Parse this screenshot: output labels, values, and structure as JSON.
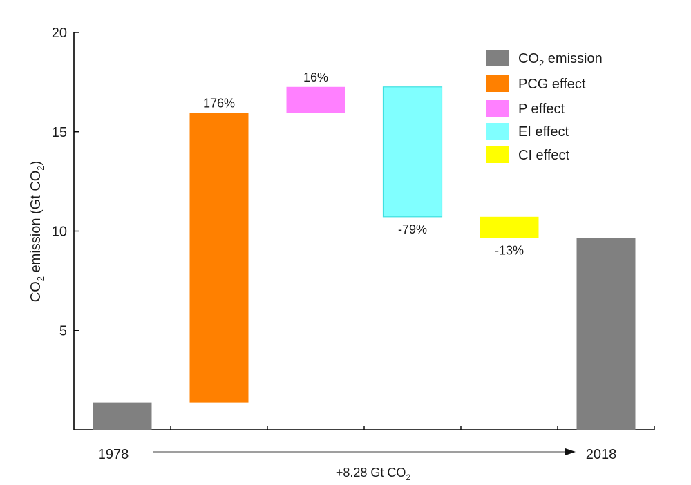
{
  "chart_data": {
    "type": "bar",
    "subtype": "waterfall",
    "ylabel": "CO₂ emission (Gt CO₂)",
    "ylabel_parts": {
      "pre": "CO",
      "sub1": "2",
      "mid": " emission (Gt CO",
      "sub2": "2",
      "post": ")"
    },
    "ylim": [
      0,
      20
    ],
    "yticks": [
      5,
      10,
      15,
      20
    ],
    "ytick_labels": [
      "5",
      "10",
      "15",
      "20"
    ],
    "start_label": "1978",
    "end_label": "2018",
    "change_label": {
      "pre": "+8.28 Gt CO",
      "sub": "2"
    },
    "bars": [
      {
        "name": "1978",
        "series": "CO2 emission",
        "bottom": 0,
        "top": 1.37,
        "label": ""
      },
      {
        "name": "PCG effect",
        "series": "PCG effect",
        "bottom": 1.37,
        "top": 15.94,
        "label": "176%",
        "label_pos": "above"
      },
      {
        "name": "P effect",
        "series": "P effect",
        "bottom": 15.94,
        "top": 17.26,
        "label": "16%",
        "label_pos": "above"
      },
      {
        "name": "EI effect",
        "series": "EI effect",
        "bottom": 10.72,
        "top": 17.26,
        "label": "-79%",
        "label_pos": "below"
      },
      {
        "name": "CI effect",
        "series": "CI effect",
        "bottom": 9.65,
        "top": 10.72,
        "label": "-13%",
        "label_pos": "below"
      },
      {
        "name": "2018",
        "series": "CO2 emission",
        "bottom": 0,
        "top": 9.65,
        "label": ""
      }
    ],
    "legend": {
      "position": "top-right",
      "entries": [
        {
          "series": "CO2 emission",
          "label_pre": "CO",
          "label_sub": "2",
          "label_post": " emission",
          "color": "#808080"
        },
        {
          "series": "PCG effect",
          "label": "PCG effect",
          "color": "#FF8000"
        },
        {
          "series": "P effect",
          "label": "P effect",
          "color": "#FF80FF"
        },
        {
          "series": "EI effect",
          "label": "EI effect",
          "color": "#80FFFF"
        },
        {
          "series": "CI effect",
          "label": "CI effect",
          "color": "#FFFF00"
        }
      ]
    },
    "grid": false
  }
}
